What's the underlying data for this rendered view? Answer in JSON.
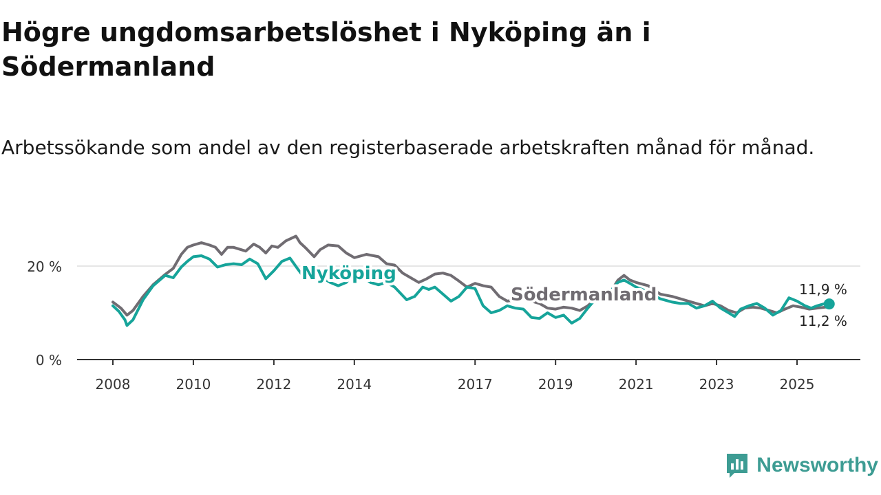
{
  "title": "Högre ungdomsarbetslöshet i Nyköping än i Södermanland",
  "subtitle": "Arbetssökande som andel av den registerbaserade arbetskraften månad för månad.",
  "brand": {
    "name": "Newsworthy",
    "icon": "newsworthy-logo-icon"
  },
  "colors": {
    "nykoping": "#16a49a",
    "sodermanland": "#706c72",
    "grid": "#dddddd",
    "axis": "#333333"
  },
  "chart_data": {
    "type": "line",
    "title": "Högre ungdomsarbetslöshet i Nyköping än i Södermanland",
    "xlabel": "",
    "ylabel": "",
    "ylim": [
      0,
      30
    ],
    "xlim": [
      2008.0,
      2025.9
    ],
    "y_ticks": [
      {
        "value": 0,
        "label": "0 %"
      },
      {
        "value": 20,
        "label": "20 %"
      }
    ],
    "x_ticks": [
      {
        "value": 2008,
        "label": "2008"
      },
      {
        "value": 2010,
        "label": "2010"
      },
      {
        "value": 2012,
        "label": "2012"
      },
      {
        "value": 2014,
        "label": "2014"
      },
      {
        "value": 2017,
        "label": "2017"
      },
      {
        "value": 2019,
        "label": "2019"
      },
      {
        "value": 2021,
        "label": "2021"
      },
      {
        "value": 2023,
        "label": "2023"
      },
      {
        "value": 2025,
        "label": "2025"
      }
    ],
    "series": [
      {
        "name": "Södermanland",
        "label": "Södermanland",
        "end_label": "11,2 %",
        "points": [
          [
            2008.0,
            12.3
          ],
          [
            2008.2,
            11.0
          ],
          [
            2008.35,
            9.5
          ],
          [
            2008.5,
            10.5
          ],
          [
            2008.75,
            13.5
          ],
          [
            2009.0,
            16.0
          ],
          [
            2009.3,
            18.2
          ],
          [
            2009.5,
            19.5
          ],
          [
            2009.7,
            22.5
          ],
          [
            2009.85,
            24.0
          ],
          [
            2010.0,
            24.5
          ],
          [
            2010.2,
            25.0
          ],
          [
            2010.4,
            24.5
          ],
          [
            2010.55,
            24.0
          ],
          [
            2010.7,
            22.5
          ],
          [
            2010.85,
            24.0
          ],
          [
            2011.0,
            24.0
          ],
          [
            2011.3,
            23.2
          ],
          [
            2011.5,
            24.7
          ],
          [
            2011.65,
            24.0
          ],
          [
            2011.8,
            22.8
          ],
          [
            2011.95,
            24.3
          ],
          [
            2012.1,
            24.0
          ],
          [
            2012.3,
            25.4
          ],
          [
            2012.55,
            26.4
          ],
          [
            2012.65,
            25.0
          ],
          [
            2012.8,
            23.8
          ],
          [
            2013.0,
            22.0
          ],
          [
            2013.15,
            23.5
          ],
          [
            2013.35,
            24.5
          ],
          [
            2013.6,
            24.3
          ],
          [
            2013.8,
            22.8
          ],
          [
            2014.0,
            21.8
          ],
          [
            2014.3,
            22.5
          ],
          [
            2014.6,
            22.0
          ],
          [
            2014.8,
            20.5
          ],
          [
            2015.0,
            20.2
          ],
          [
            2015.2,
            18.5
          ],
          [
            2015.4,
            17.5
          ],
          [
            2015.6,
            16.5
          ],
          [
            2015.8,
            17.3
          ],
          [
            2016.0,
            18.3
          ],
          [
            2016.2,
            18.5
          ],
          [
            2016.4,
            18.0
          ],
          [
            2016.6,
            16.8
          ],
          [
            2016.8,
            15.5
          ],
          [
            2017.0,
            16.3
          ],
          [
            2017.2,
            15.8
          ],
          [
            2017.4,
            15.5
          ],
          [
            2017.6,
            13.5
          ],
          [
            2017.8,
            12.5
          ],
          [
            2018.0,
            12.8
          ],
          [
            2018.2,
            13.5
          ],
          [
            2018.4,
            12.5
          ],
          [
            2018.6,
            12.0
          ],
          [
            2018.8,
            11.0
          ],
          [
            2019.0,
            10.8
          ],
          [
            2019.2,
            11.2
          ],
          [
            2019.4,
            11.0
          ],
          [
            2019.6,
            10.5
          ],
          [
            2019.8,
            11.5
          ],
          [
            2020.0,
            13.0
          ],
          [
            2020.3,
            13.5
          ],
          [
            2020.55,
            17.0
          ],
          [
            2020.7,
            18.0
          ],
          [
            2020.85,
            17.0
          ],
          [
            2021.0,
            16.5
          ],
          [
            2021.3,
            15.8
          ],
          [
            2021.6,
            14.0
          ],
          [
            2021.9,
            13.5
          ],
          [
            2022.1,
            13.0
          ],
          [
            2022.3,
            12.5
          ],
          [
            2022.5,
            12.0
          ],
          [
            2022.7,
            11.5
          ],
          [
            2022.9,
            12.0
          ],
          [
            2023.1,
            11.5
          ],
          [
            2023.3,
            10.5
          ],
          [
            2023.5,
            10.0
          ],
          [
            2023.7,
            11.0
          ],
          [
            2023.9,
            11.2
          ],
          [
            2024.1,
            11.0
          ],
          [
            2024.3,
            10.5
          ],
          [
            2024.5,
            10.0
          ],
          [
            2024.7,
            10.8
          ],
          [
            2024.9,
            11.5
          ],
          [
            2025.1,
            11.2
          ],
          [
            2025.3,
            10.8
          ],
          [
            2025.5,
            11.0
          ],
          [
            2025.7,
            11.2
          ],
          [
            2025.8,
            11.2
          ]
        ]
      },
      {
        "name": "Nyköping",
        "label": "Nyköping",
        "end_label": "11,9 %",
        "points": [
          [
            2008.0,
            11.5
          ],
          [
            2008.15,
            10.3
          ],
          [
            2008.3,
            8.5
          ],
          [
            2008.35,
            7.3
          ],
          [
            2008.5,
            8.5
          ],
          [
            2008.75,
            12.8
          ],
          [
            2009.0,
            15.8
          ],
          [
            2009.3,
            18.0
          ],
          [
            2009.5,
            17.5
          ],
          [
            2009.7,
            19.8
          ],
          [
            2009.85,
            21.0
          ],
          [
            2010.0,
            22.0
          ],
          [
            2010.2,
            22.2
          ],
          [
            2010.4,
            21.5
          ],
          [
            2010.6,
            19.8
          ],
          [
            2010.8,
            20.3
          ],
          [
            2011.0,
            20.5
          ],
          [
            2011.2,
            20.3
          ],
          [
            2011.4,
            21.5
          ],
          [
            2011.6,
            20.5
          ],
          [
            2011.8,
            17.3
          ],
          [
            2012.0,
            19.0
          ],
          [
            2012.2,
            21.0
          ],
          [
            2012.4,
            21.7
          ],
          [
            2012.6,
            19.3
          ],
          [
            2012.8,
            17.0
          ],
          [
            2013.0,
            18.8
          ],
          [
            2013.2,
            17.5
          ],
          [
            2013.4,
            16.5
          ],
          [
            2013.6,
            15.8
          ],
          [
            2013.8,
            16.5
          ],
          [
            2014.0,
            18.5
          ],
          [
            2014.2,
            17.8
          ],
          [
            2014.4,
            16.5
          ],
          [
            2014.6,
            16.0
          ],
          [
            2014.8,
            16.5
          ],
          [
            2015.0,
            15.5
          ],
          [
            2015.3,
            12.8
          ],
          [
            2015.5,
            13.5
          ],
          [
            2015.7,
            15.5
          ],
          [
            2015.85,
            15.0
          ],
          [
            2016.0,
            15.5
          ],
          [
            2016.2,
            14.0
          ],
          [
            2016.4,
            12.5
          ],
          [
            2016.6,
            13.5
          ],
          [
            2016.8,
            15.5
          ],
          [
            2017.0,
            15.2
          ],
          [
            2017.2,
            11.5
          ],
          [
            2017.4,
            10.0
          ],
          [
            2017.6,
            10.5
          ],
          [
            2017.8,
            11.5
          ],
          [
            2018.0,
            11.0
          ],
          [
            2018.2,
            10.8
          ],
          [
            2018.4,
            9.0
          ],
          [
            2018.6,
            8.8
          ],
          [
            2018.8,
            10.0
          ],
          [
            2019.0,
            9.0
          ],
          [
            2019.2,
            9.5
          ],
          [
            2019.4,
            7.8
          ],
          [
            2019.6,
            8.8
          ],
          [
            2019.8,
            11.0
          ],
          [
            2020.0,
            13.0
          ],
          [
            2020.3,
            14.0
          ],
          [
            2020.55,
            16.5
          ],
          [
            2020.7,
            17.0
          ],
          [
            2020.85,
            16.3
          ],
          [
            2021.0,
            15.5
          ],
          [
            2021.3,
            14.5
          ],
          [
            2021.6,
            13.0
          ],
          [
            2021.9,
            12.3
          ],
          [
            2022.1,
            12.0
          ],
          [
            2022.3,
            12.0
          ],
          [
            2022.5,
            11.0
          ],
          [
            2022.7,
            11.5
          ],
          [
            2022.9,
            12.5
          ],
          [
            2023.1,
            11.0
          ],
          [
            2023.3,
            10.0
          ],
          [
            2023.45,
            9.2
          ],
          [
            2023.6,
            10.8
          ],
          [
            2023.8,
            11.5
          ],
          [
            2024.0,
            12.0
          ],
          [
            2024.2,
            11.0
          ],
          [
            2024.4,
            9.5
          ],
          [
            2024.6,
            10.5
          ],
          [
            2024.8,
            13.2
          ],
          [
            2025.0,
            12.5
          ],
          [
            2025.2,
            11.5
          ],
          [
            2025.35,
            11.0
          ],
          [
            2025.5,
            11.5
          ],
          [
            2025.7,
            12.0
          ],
          [
            2025.8,
            11.9
          ]
        ]
      }
    ]
  }
}
